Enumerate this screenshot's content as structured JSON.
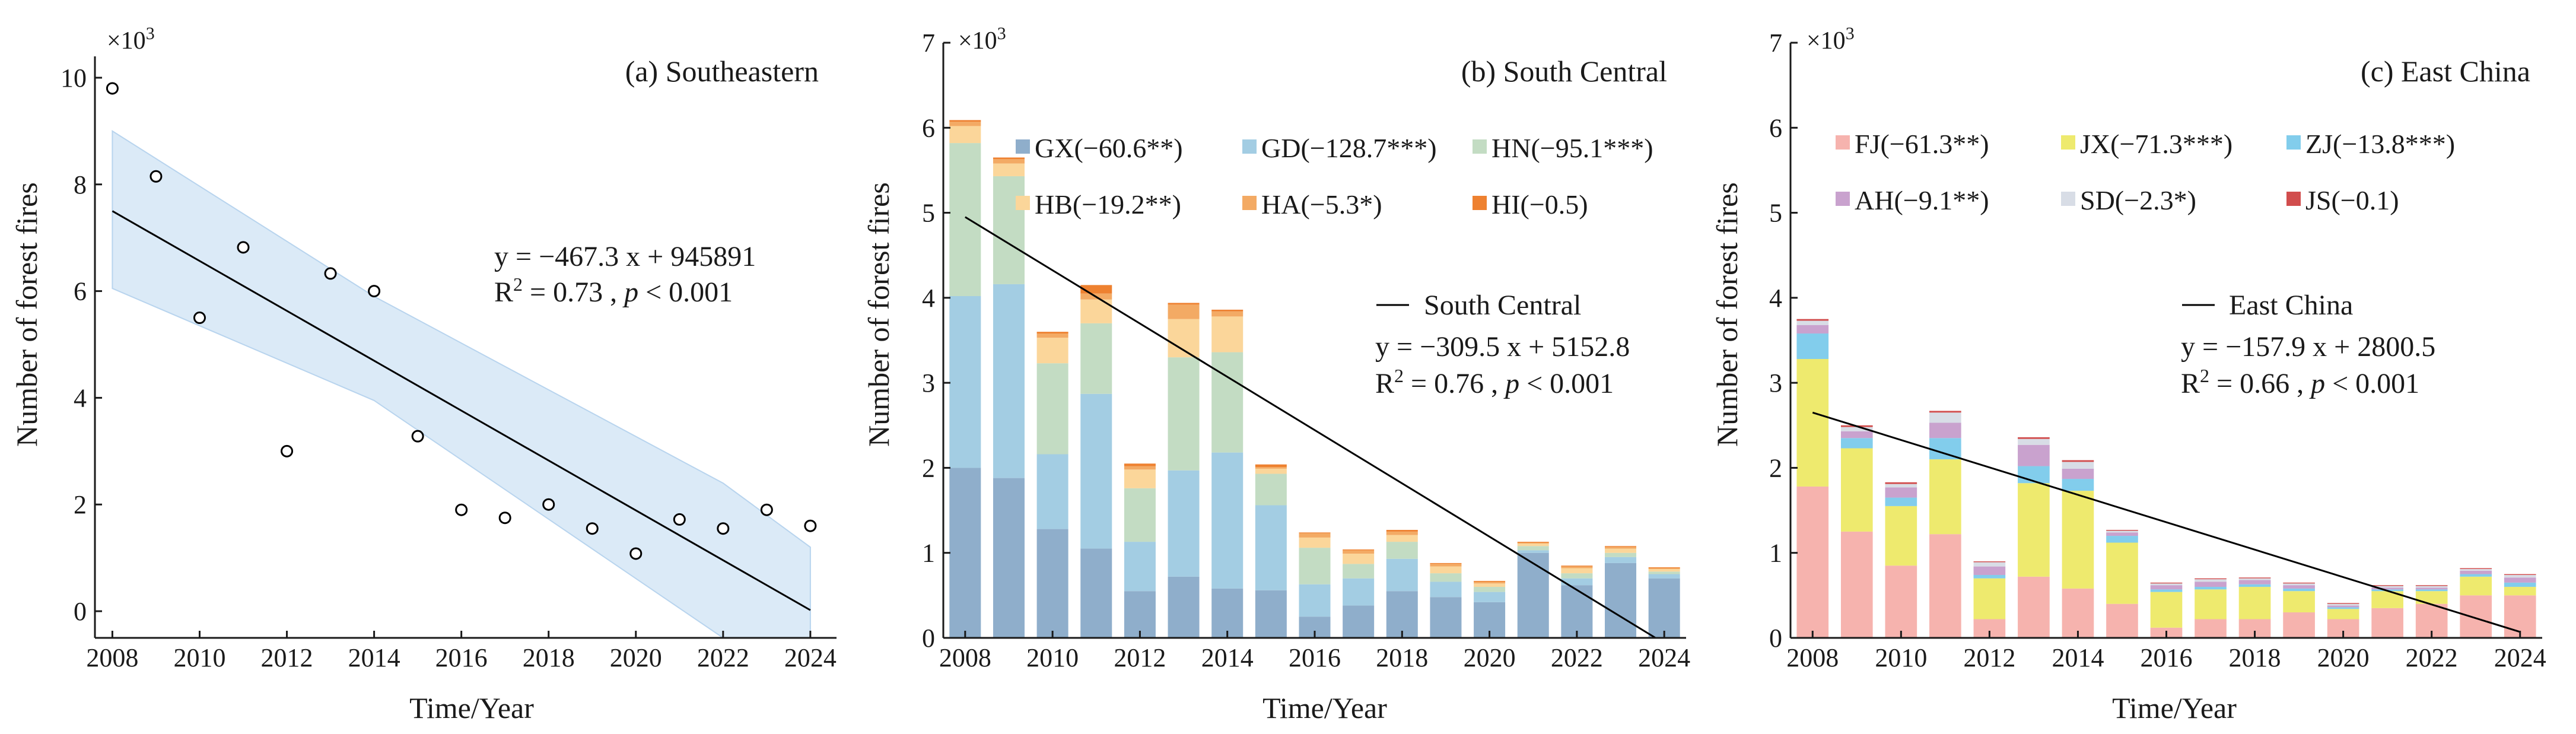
{
  "chart_data": [
    {
      "type": "scatter",
      "title": "(a)  Southeastern",
      "xlabel": "Time/Year",
      "ylabel": "Number of forest fires",
      "y_multiplier": "×10",
      "y_multiplier_exp": "3",
      "xlim": [
        2007.6,
        2024.6
      ],
      "ylim": [
        -0.5,
        10.4
      ],
      "xticks": [
        2008,
        2010,
        2012,
        2014,
        2016,
        2018,
        2020,
        2022,
        2024
      ],
      "yticks": [
        0,
        2,
        4,
        6,
        8,
        10
      ],
      "x": [
        2008,
        2009,
        2010,
        2011,
        2012,
        2013,
        2014,
        2015,
        2016,
        2017,
        2018,
        2019,
        2020,
        2021,
        2022,
        2023,
        2024
      ],
      "y": [
        9.8,
        8.15,
        5.5,
        6.82,
        3.0,
        6.33,
        6.0,
        3.28,
        1.9,
        1.75,
        2.0,
        1.55,
        1.08,
        1.72,
        1.55,
        1.9,
        1.6
      ],
      "fit": {
        "x": [
          2008,
          2024
        ],
        "y": [
          7.5,
          0.02
        ]
      },
      "band": {
        "x": [
          2008,
          2014,
          2022,
          2024
        ],
        "upper": [
          9.0,
          5.9,
          2.4,
          1.2
        ],
        "lower": [
          6.05,
          3.95,
          -0.5,
          -0.5
        ]
      },
      "equation": "y = −467.3 x + 945891",
      "r2_prefix": "R",
      "r2_sup": "2",
      "r2_mid": " = 0.73 , ",
      "p_label": "p",
      "p_value": " < 0.001",
      "colors": {
        "band": "#dbeaf7",
        "band_edge": "#b8d4ee",
        "line": "#000000"
      }
    },
    {
      "type": "bar",
      "stacked": true,
      "title": "(b)  South Central",
      "xlabel": "Time/Year",
      "ylabel": "Number of forest fires",
      "y_multiplier": "×10",
      "y_multiplier_exp": "3",
      "ylim": [
        0,
        7
      ],
      "yticks": [
        0,
        1,
        2,
        3,
        4,
        5,
        6,
        7
      ],
      "categories": [
        2008,
        2009,
        2010,
        2011,
        2012,
        2013,
        2014,
        2015,
        2016,
        2017,
        2018,
        2019,
        2020,
        2021,
        2022,
        2023,
        2024
      ],
      "xticks": [
        2008,
        2010,
        2012,
        2014,
        2016,
        2018,
        2020,
        2022,
        2024
      ],
      "series": [
        {
          "name": "GX(−60.6**)",
          "color": "#8faecb",
          "values": [
            2.0,
            1.88,
            1.28,
            1.05,
            0.55,
            0.72,
            0.58,
            0.56,
            0.25,
            0.38,
            0.55,
            0.48,
            0.42,
            1.0,
            0.62,
            0.88,
            0.7
          ]
        },
        {
          "name": "GD(−128.7***)",
          "color": "#a3cde3",
          "values": [
            2.02,
            2.28,
            0.88,
            1.82,
            0.58,
            1.25,
            1.6,
            1.0,
            0.38,
            0.32,
            0.38,
            0.18,
            0.12,
            0.03,
            0.08,
            0.07,
            0.05
          ]
        },
        {
          "name": "HN(−95.1***)",
          "color": "#c3dcc3",
          "values": [
            1.8,
            1.27,
            1.07,
            0.83,
            0.63,
            1.33,
            1.18,
            0.37,
            0.43,
            0.17,
            0.2,
            0.1,
            0.06,
            0.05,
            0.06,
            0.05,
            0.03
          ]
        },
        {
          "name": "HB(−19.2**)",
          "color": "#fbd69a",
          "values": [
            0.2,
            0.15,
            0.3,
            0.28,
            0.22,
            0.45,
            0.42,
            0.06,
            0.12,
            0.12,
            0.08,
            0.08,
            0.04,
            0.03,
            0.06,
            0.05,
            0.03
          ]
        },
        {
          "name": "HA(−5.3*)",
          "color": "#f3aa64",
          "values": [
            0.05,
            0.05,
            0.05,
            0.07,
            0.04,
            0.17,
            0.06,
            0.02,
            0.05,
            0.04,
            0.04,
            0.03,
            0.02,
            0.01,
            0.02,
            0.02,
            0.01
          ]
        },
        {
          "name": "HI(−0.5)",
          "color": "#ee8130",
          "values": [
            0.02,
            0.02,
            0.02,
            0.1,
            0.03,
            0.02,
            0.02,
            0.03,
            0.01,
            0.01,
            0.02,
            0.01,
            0.01,
            0.01,
            0.01,
            0.01,
            0.01
          ]
        }
      ],
      "fit": {
        "x": [
          2008,
          2023.8
        ],
        "y": [
          4.95,
          0.0
        ]
      },
      "fit_label": "South Central",
      "equation": "y = −309.5 x + 5152.8",
      "r2_prefix": "R",
      "r2_sup": "2",
      "r2_mid": " = 0.76 , ",
      "p_label": "p",
      "p_value": " < 0.001"
    },
    {
      "type": "bar",
      "stacked": true,
      "title": "(c)  East China",
      "xlabel": "Time/Year",
      "ylabel": "Number of forest fires",
      "y_multiplier": "×10",
      "y_multiplier_exp": "3",
      "ylim": [
        0,
        7
      ],
      "yticks": [
        0,
        1,
        2,
        3,
        4,
        5,
        6,
        7
      ],
      "categories": [
        2008,
        2009,
        2010,
        2011,
        2012,
        2013,
        2014,
        2015,
        2016,
        2017,
        2018,
        2019,
        2020,
        2021,
        2022,
        2023,
        2024
      ],
      "xticks": [
        2008,
        2010,
        2012,
        2014,
        2016,
        2018,
        2020,
        2022,
        2024
      ],
      "series": [
        {
          "name": "FJ(−61.3**)",
          "color": "#f6b3ae",
          "values": [
            1.78,
            1.25,
            0.85,
            1.22,
            0.22,
            0.72,
            0.58,
            0.4,
            0.12,
            0.22,
            0.22,
            0.3,
            0.22,
            0.35,
            0.4,
            0.5,
            0.5
          ]
        },
        {
          "name": "JX(−71.3***)",
          "color": "#eeea6e",
          "values": [
            1.5,
            0.98,
            0.7,
            0.88,
            0.48,
            1.1,
            1.15,
            0.72,
            0.42,
            0.35,
            0.38,
            0.25,
            0.12,
            0.2,
            0.15,
            0.22,
            0.1
          ]
        },
        {
          "name": "ZJ(−13.8***)",
          "color": "#82cdec",
          "values": [
            0.3,
            0.12,
            0.1,
            0.25,
            0.04,
            0.2,
            0.14,
            0.08,
            0.03,
            0.03,
            0.03,
            0.03,
            0.02,
            0.02,
            0.02,
            0.03,
            0.05
          ]
        },
        {
          "name": "AH(−9.1**)",
          "color": "#c9a2ce",
          "values": [
            0.1,
            0.08,
            0.12,
            0.18,
            0.1,
            0.25,
            0.12,
            0.04,
            0.05,
            0.06,
            0.05,
            0.04,
            0.02,
            0.02,
            0.02,
            0.04,
            0.06
          ]
        },
        {
          "name": "SD(−2.3*)",
          "color": "#d8dde6",
          "values": [
            0.05,
            0.05,
            0.04,
            0.12,
            0.05,
            0.07,
            0.08,
            0.02,
            0.02,
            0.03,
            0.02,
            0.02,
            0.02,
            0.02,
            0.02,
            0.02,
            0.03
          ]
        },
        {
          "name": "JS(−0.1)",
          "color": "#d14d4d",
          "values": [
            0.02,
            0.02,
            0.02,
            0.02,
            0.01,
            0.02,
            0.02,
            0.01,
            0.01,
            0.01,
            0.01,
            0.01,
            0.01,
            0.01,
            0.01,
            0.01,
            0.01
          ]
        }
      ],
      "fit": {
        "x": [
          2008,
          2024
        ],
        "y": [
          2.65,
          0.07
        ]
      },
      "fit_label": "East China",
      "equation": "y = −157.9 x + 2800.5",
      "r2_prefix": "R",
      "r2_sup": "2",
      "r2_mid": " = 0.66 , ",
      "p_label": "p",
      "p_value": " < 0.001"
    }
  ]
}
